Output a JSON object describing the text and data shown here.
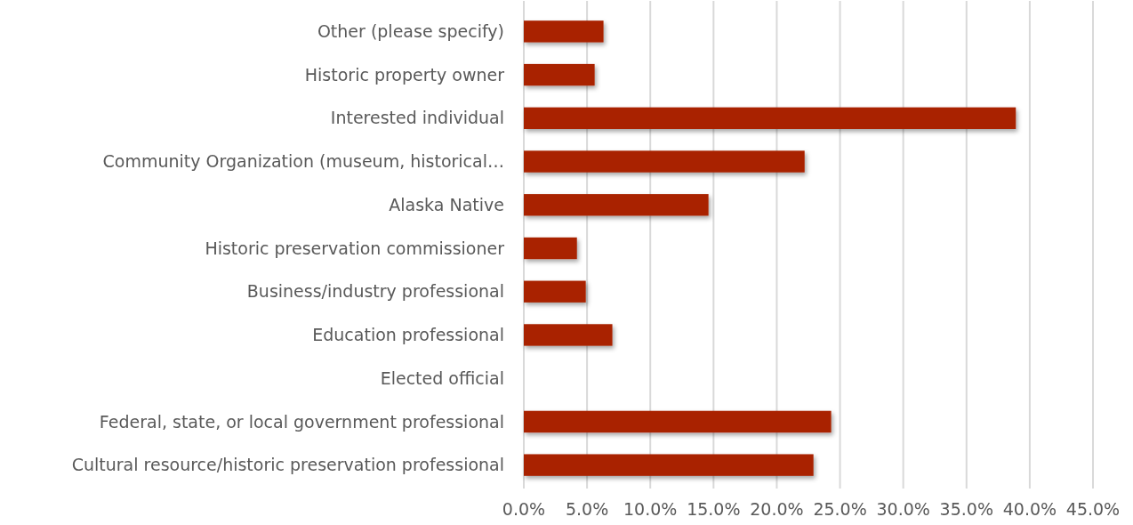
{
  "chart_data": {
    "type": "bar",
    "orientation": "horizontal",
    "categories": [
      "Other (please specify)",
      "Historic property owner",
      "Interested individual",
      "Community Organization (museum, historical…",
      "Alaska Native",
      "Historic preservation commissioner",
      "Business/industry professional",
      "Education professional",
      "Elected official",
      "Federal, state, or local government professional",
      "Cultural resource/historic preservation professional"
    ],
    "values": [
      6.3,
      5.6,
      38.9,
      22.2,
      14.6,
      4.2,
      4.9,
      7.0,
      0,
      24.3,
      22.9
    ],
    "color": "#a92300",
    "xlim": [
      0,
      45
    ],
    "xticks": [
      {
        "value": 0,
        "label": "0.0%"
      },
      {
        "value": 5,
        "label": "5.0%"
      },
      {
        "value": 10,
        "label": "10.0%"
      },
      {
        "value": 15,
        "label": "15.0%"
      },
      {
        "value": 20,
        "label": "20.0%"
      },
      {
        "value": 25,
        "label": "25.0%"
      },
      {
        "value": 30,
        "label": "30.0%"
      },
      {
        "value": 35,
        "label": "35.0%"
      },
      {
        "value": 40,
        "label": "40.0%"
      },
      {
        "value": 45,
        "label": "45.0%"
      }
    ],
    "grid": "x"
  }
}
